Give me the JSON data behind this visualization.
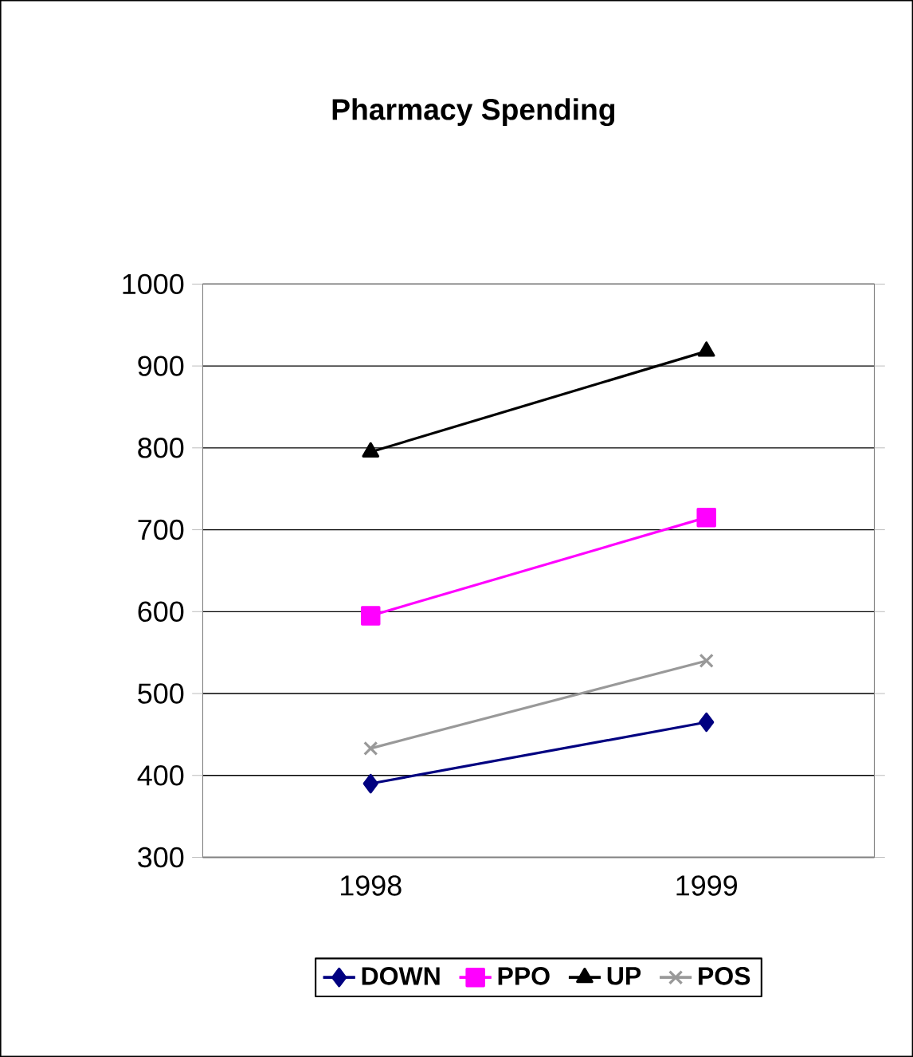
{
  "chart_data": {
    "type": "line",
    "title": "Pharmacy Spending",
    "categories": [
      "1998",
      "1999"
    ],
    "series": [
      {
        "name": "DOWN",
        "color": "#000080",
        "marker": "diamond",
        "values": [
          390,
          465
        ]
      },
      {
        "name": "PPO",
        "color": "#ff00ff",
        "marker": "square",
        "values": [
          595,
          715
        ]
      },
      {
        "name": "UP",
        "color": "#000000",
        "marker": "triangle",
        "values": [
          795,
          918
        ]
      },
      {
        "name": "POS",
        "color": "#999999",
        "marker": "cross",
        "values": [
          433,
          540
        ]
      }
    ],
    "ylim": [
      300,
      1000
    ],
    "yticks": [
      300,
      400,
      500,
      600,
      700,
      800,
      900,
      1000
    ],
    "grid": "y",
    "legend": "bottom",
    "line_style": "solid"
  }
}
